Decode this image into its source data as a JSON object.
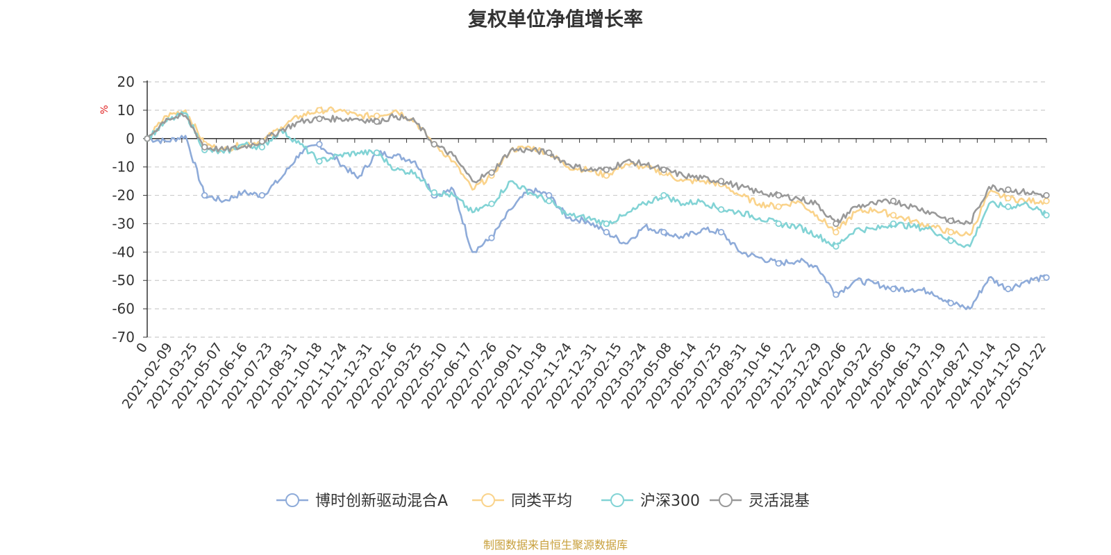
{
  "title": "复权单位净值增长率",
  "footer": "制图数据来自恒生聚源数据库",
  "chart_data": {
    "type": "line",
    "ylabel": "%",
    "ylim": [
      -70,
      20
    ],
    "yticks": [
      20,
      10,
      0,
      -10,
      -20,
      -30,
      -40,
      -50,
      -60,
      -70
    ],
    "grid": true,
    "legend_position": "bottom",
    "x_tick_labels": [
      "0",
      "2021-02-09",
      "2021-03-25",
      "2021-05-07",
      "2021-06-16",
      "2021-07-23",
      "2021-08-31",
      "2021-10-18",
      "2021-11-24",
      "2021-12-31",
      "2022-02-16",
      "2022-03-25",
      "2022-05-10",
      "2022-06-17",
      "2022-07-26",
      "2022-09-01",
      "2022-10-18",
      "2022-11-24",
      "2022-12-31",
      "2023-02-15",
      "2023-03-24",
      "2023-05-08",
      "2023-06-14",
      "2023-07-25",
      "2023-08-31",
      "2023-10-16",
      "2023-11-22",
      "2023-12-29",
      "2024-02-06",
      "2024-03-22",
      "2024-05-06",
      "2024-06-13",
      "2024-07-19",
      "2024-08-27",
      "2024-10-14",
      "2024-11-20",
      "2025-01-22"
    ],
    "series": [
      {
        "name": "博时创新驱动混合A",
        "color": "#8eabd9",
        "values": [
          0,
          -1,
          1,
          -20,
          -22,
          -19,
          -20,
          -14,
          -5,
          -2,
          -8,
          -14,
          -5,
          -6,
          -8,
          -20,
          -18,
          -40,
          -35,
          -25,
          -18,
          -20,
          -28,
          -29,
          -33,
          -37,
          -31,
          -33,
          -35,
          -32,
          -33,
          -40,
          -42,
          -44,
          -43,
          -45,
          -55,
          -50,
          -51,
          -53,
          -53,
          -54,
          -58,
          -60,
          -49,
          -53,
          -50,
          -49
        ]
      },
      {
        "name": "同类平均",
        "color": "#fad38b",
        "values": [
          0,
          8,
          10,
          -2,
          -4,
          -2,
          -1,
          4,
          8,
          10,
          10,
          8,
          8,
          10,
          6,
          -2,
          -8,
          -18,
          -13,
          -4,
          -3,
          -5,
          -10,
          -11,
          -13,
          -9,
          -10,
          -12,
          -15,
          -15,
          -16,
          -20,
          -23,
          -24,
          -22,
          -27,
          -33,
          -26,
          -25,
          -27,
          -29,
          -31,
          -33,
          -34,
          -19,
          -21,
          -22,
          -22
        ]
      },
      {
        "name": "沪深300",
        "color": "#82d3d5",
        "values": [
          0,
          6,
          9,
          -4,
          -5,
          -2,
          -3,
          3,
          -2,
          -8,
          -6,
          -5,
          -5,
          -11,
          -12,
          -19,
          -20,
          -26,
          -23,
          -15,
          -19,
          -22,
          -27,
          -28,
          -30,
          -27,
          -23,
          -20,
          -23,
          -22,
          -25,
          -26,
          -28,
          -30,
          -31,
          -34,
          -38,
          -32,
          -32,
          -30,
          -31,
          -32,
          -36,
          -38,
          -23,
          -24,
          -23,
          -27
        ]
      },
      {
        "name": "灵活混基",
        "color": "#999999",
        "values": [
          0,
          7,
          8,
          -3,
          -4,
          -3,
          -1,
          3,
          6,
          7,
          7,
          7,
          6,
          8,
          6,
          -2,
          -6,
          -15,
          -12,
          -4,
          -4,
          -5,
          -9,
          -11,
          -11,
          -8,
          -9,
          -11,
          -13,
          -14,
          -15,
          -17,
          -19,
          -20,
          -21,
          -23,
          -30,
          -24,
          -23,
          -22,
          -24,
          -26,
          -29,
          -30,
          -17,
          -18,
          -19,
          -20
        ]
      }
    ]
  }
}
